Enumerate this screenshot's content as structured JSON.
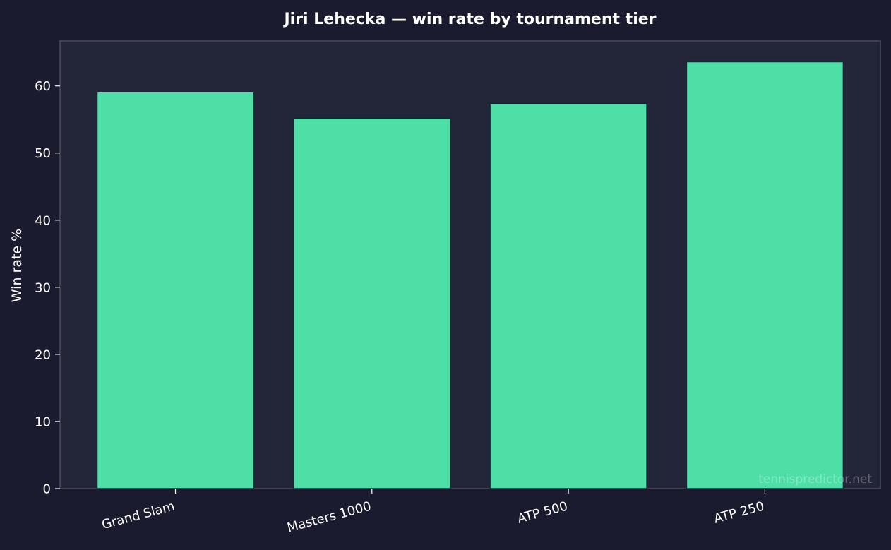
{
  "chart_data": {
    "type": "bar",
    "title": "Jiri Lehecka — win rate by tournament tier",
    "xlabel": "",
    "ylabel": "Win rate %",
    "categories": [
      "Grand Slam",
      "Masters 1000",
      "ATP 500",
      "ATP 250"
    ],
    "values": [
      59.1,
      55.2,
      57.4,
      63.6
    ],
    "ylim": [
      0,
      66.7
    ],
    "yticks": [
      "0",
      "10",
      "20",
      "30",
      "40",
      "50",
      "60"
    ],
    "grid": false,
    "legend": "none",
    "watermark": "tennispredictor.net"
  },
  "colors": {
    "background": "#1a1b2e",
    "plot_background": "#232538",
    "bar_fill": "#4ddfa6",
    "bar_edge": "#16263a",
    "axis": "#4a4c5c",
    "text": "#ffffff"
  }
}
